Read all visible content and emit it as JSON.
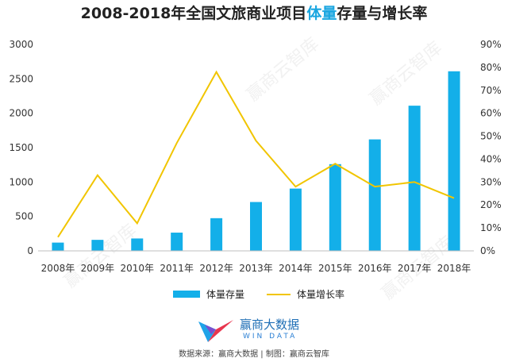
{
  "title": {
    "part1": "2008-2018年全国文旅商业项目",
    "highlight": "体量",
    "part2": "存量与增长率"
  },
  "colors": {
    "bar": "#13afe9",
    "line": "#f1c500",
    "title_highlight": "#1aa6e0",
    "axis": "#bfbfbf"
  },
  "legend": {
    "bar_label": "体量存量",
    "line_label": "体量增长率"
  },
  "watermark": "赢商云智库",
  "logo": {
    "name": "赢商大数据",
    "sub": "WIN DATA"
  },
  "source": "数据来源：赢商大数据 | 制图：赢商云智库",
  "chart_data": {
    "type": "bar",
    "categories": [
      "2008年",
      "2009年",
      "2010年",
      "2011年",
      "2012年",
      "2013年",
      "2014年",
      "2015年",
      "2016年",
      "2017年",
      "2018年"
    ],
    "series": [
      {
        "name": "体量存量",
        "type": "bar",
        "axis": "left",
        "values": [
          120,
          160,
          180,
          265,
          475,
          710,
          905,
          1260,
          1620,
          2110,
          2610
        ]
      },
      {
        "name": "体量增长率",
        "type": "line",
        "axis": "right",
        "values": [
          6,
          33,
          12,
          47,
          78,
          48,
          28,
          38,
          28,
          30,
          23
        ]
      }
    ],
    "y_left": {
      "ticks": [
        0,
        500,
        1000,
        1500,
        2000,
        2500,
        3000
      ],
      "ylim": [
        0,
        3000
      ]
    },
    "y_right": {
      "ticks": [
        "0%",
        "10%",
        "20%",
        "30%",
        "40%",
        "50%",
        "60%",
        "70%",
        "80%",
        "90%"
      ],
      "ylim": [
        0,
        90
      ]
    },
    "legend_position": "bottom",
    "grid": false
  }
}
